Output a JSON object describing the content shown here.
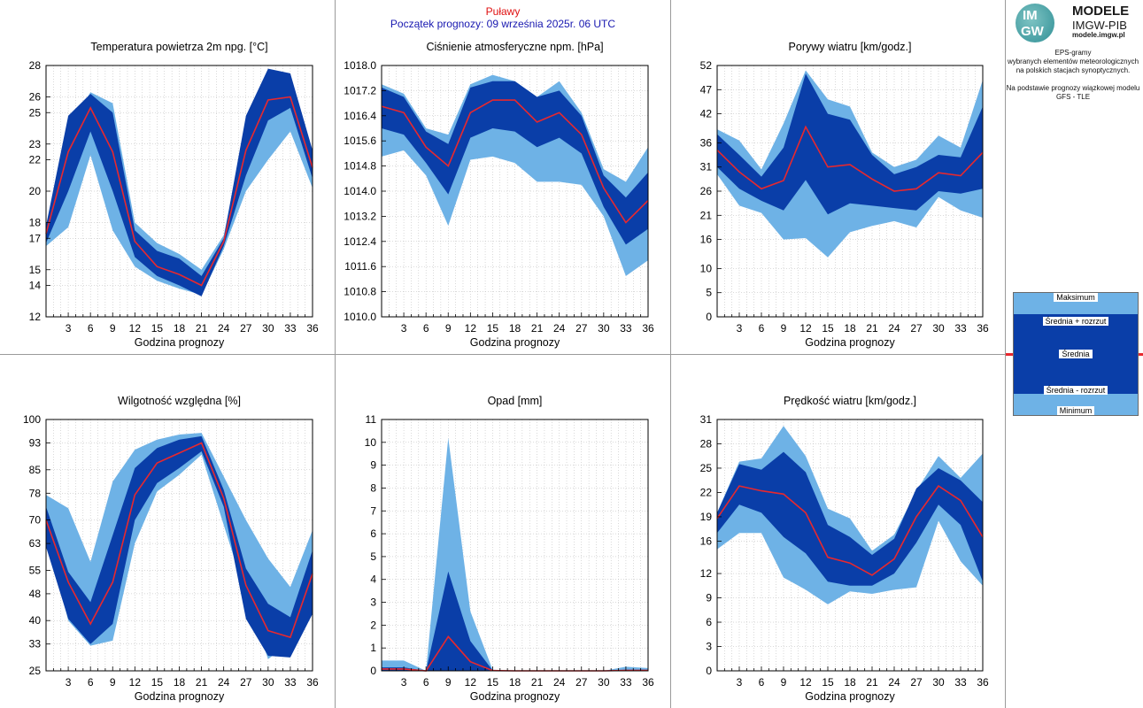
{
  "header": {
    "station": "Puławy",
    "forecast_start": "Początek prognozy: 09 września 2025r. 06 UTC"
  },
  "logo": {
    "letters_top": "IM",
    "letters_bottom": "GW",
    "title": "MODELE",
    "subtitle": "IMGW-PIB",
    "site": "modele.imgw.pl"
  },
  "description": {
    "line1": "EPS-gramy",
    "line2": "wybranych elementów meteorologicznych",
    "line3": "na polskich stacjach  synoptycznych.",
    "line4": "Na podstawie prognozy wiązkowej modelu",
    "line5": "GFS - TLE"
  },
  "legend": {
    "max": "Maksimum",
    "mean_plus": "Średnia + rozrzut",
    "mean": "Średnia",
    "mean_minus": "Średnia - rozrzut",
    "min": "Minimum"
  },
  "colors": {
    "outer_band": "#6eb2e6",
    "inner_band": "#0a3ea8",
    "mean_line": "#e8282e",
    "axis": "#000000",
    "grid": "#b4b4b4",
    "divider": "#9a9a9a"
  },
  "chart_data": [
    {
      "type": "area",
      "title": "Temperatura powietrza 2m npg. [°C]",
      "xlabel": "Godzina prognozy",
      "x": [
        0,
        3,
        6,
        9,
        12,
        15,
        18,
        21,
        24,
        27,
        30,
        33,
        36
      ],
      "xticks": [
        "3",
        "6",
        "9",
        "12",
        "15",
        "18",
        "21",
        "24",
        "27",
        "30",
        "33",
        "36"
      ],
      "ylim": [
        12,
        28
      ],
      "yticks": [
        "12",
        "14",
        "15",
        "17",
        "18",
        "20",
        "22",
        "23",
        "25",
        "26",
        "28"
      ],
      "series": {
        "max": [
          17.0,
          24.0,
          26.3,
          25.6,
          18.0,
          16.7,
          16.0,
          15.0,
          17.2,
          24.0,
          27.0,
          26.7,
          21.8
        ],
        "mean_plus": [
          17.8,
          24.8,
          26.2,
          25.0,
          17.5,
          16.2,
          15.7,
          14.6,
          17.0,
          24.8,
          27.8,
          27.5,
          22.6
        ],
        "mean": [
          17.3,
          22.5,
          25.3,
          22.5,
          16.8,
          15.2,
          14.7,
          14.0,
          16.8,
          22.6,
          25.8,
          26.0,
          21.5
        ],
        "mean_minus": [
          16.7,
          20.0,
          23.8,
          20.0,
          15.8,
          14.6,
          14.0,
          13.3,
          16.5,
          21.0,
          24.5,
          25.3,
          20.8
        ],
        "min": [
          16.5,
          17.7,
          22.3,
          17.5,
          15.2,
          14.3,
          13.8,
          13.4,
          16.3,
          20.0,
          22.0,
          23.8,
          20.2
        ]
      }
    },
    {
      "type": "area",
      "title": "Ciśnienie atmosferyczne npm. [hPa]",
      "xlabel": "Godzina prognozy",
      "x": [
        0,
        3,
        6,
        9,
        12,
        15,
        18,
        21,
        24,
        27,
        30,
        33,
        36
      ],
      "xticks": [
        "3",
        "6",
        "9",
        "12",
        "15",
        "18",
        "21",
        "24",
        "27",
        "30",
        "33",
        "36"
      ],
      "ylim": [
        1010.0,
        1018.0
      ],
      "yticks": [
        "1010.0",
        "1010.8",
        "1011.6",
        "1012.4",
        "1013.2",
        "1014.0",
        "1014.8",
        "1015.6",
        "1016.4",
        "1017.2",
        "1018.0"
      ],
      "series": {
        "max": [
          1017.4,
          1017.1,
          1016.0,
          1015.8,
          1017.4,
          1017.7,
          1017.5,
          1017.0,
          1017.5,
          1016.5,
          1014.7,
          1014.3,
          1015.4
        ],
        "mean_plus": [
          1017.3,
          1017.0,
          1015.9,
          1015.5,
          1017.3,
          1017.5,
          1017.5,
          1017.0,
          1017.2,
          1016.4,
          1014.5,
          1013.8,
          1014.6
        ],
        "mean": [
          1016.7,
          1016.5,
          1015.4,
          1014.8,
          1016.5,
          1016.9,
          1016.9,
          1016.2,
          1016.5,
          1015.8,
          1014.1,
          1013.0,
          1013.7
        ],
        "mean_minus": [
          1016.0,
          1015.8,
          1014.9,
          1013.9,
          1015.7,
          1016.0,
          1015.9,
          1015.4,
          1015.7,
          1015.2,
          1013.5,
          1012.3,
          1012.8
        ],
        "min": [
          1015.1,
          1015.3,
          1014.5,
          1012.9,
          1015.0,
          1015.1,
          1014.9,
          1014.3,
          1014.3,
          1014.2,
          1013.2,
          1011.3,
          1011.8
        ]
      }
    },
    {
      "type": "area",
      "title": "Porywy wiatru [km/godz.]",
      "xlabel": "Godzina prognozy",
      "x": [
        0,
        3,
        6,
        9,
        12,
        15,
        18,
        21,
        24,
        27,
        30,
        33,
        36
      ],
      "xticks": [
        "3",
        "6",
        "9",
        "12",
        "15",
        "18",
        "21",
        "24",
        "27",
        "30",
        "33",
        "36"
      ],
      "ylim": [
        0,
        52
      ],
      "yticks": [
        "0",
        "5",
        "10",
        "16",
        "21",
        "26",
        "31",
        "36",
        "42",
        "47",
        "52"
      ],
      "series": {
        "max": [
          38.8,
          36.5,
          30.5,
          40.0,
          51.0,
          45.0,
          43.5,
          34.0,
          31.0,
          32.5,
          37.5,
          35.0,
          49.0
        ],
        "mean_plus": [
          37.8,
          33.5,
          29.0,
          35.0,
          50.3,
          42.0,
          40.8,
          33.5,
          29.5,
          31.0,
          33.5,
          33.0,
          43.5
        ],
        "mean": [
          34.5,
          30.0,
          26.5,
          28.2,
          39.3,
          31.0,
          31.5,
          28.5,
          26.0,
          26.5,
          29.8,
          29.2,
          34.0
        ],
        "mean_minus": [
          31.0,
          26.5,
          24.0,
          22.0,
          28.3,
          21.2,
          23.5,
          23.0,
          22.5,
          22.0,
          26.0,
          25.5,
          26.5
        ],
        "min": [
          29.5,
          23.0,
          21.5,
          16.0,
          16.3,
          12.3,
          17.5,
          18.8,
          19.8,
          18.5,
          24.8,
          22.0,
          20.5
        ]
      }
    },
    {
      "type": "area",
      "title": "Wilgotność względna [%]",
      "xlabel": "Godzina prognozy",
      "x": [
        0,
        3,
        6,
        9,
        12,
        15,
        18,
        21,
        24,
        27,
        30,
        33,
        36
      ],
      "xticks": [
        "3",
        "6",
        "9",
        "12",
        "15",
        "18",
        "21",
        "24",
        "27",
        "30",
        "33",
        "36"
      ],
      "ylim": [
        25,
        100
      ],
      "yticks": [
        "25",
        "33",
        "40",
        "48",
        "55",
        "63",
        "70",
        "78",
        "85",
        "93",
        "100"
      ],
      "series": {
        "max": [
          77.5,
          73.5,
          57.5,
          81.5,
          91.0,
          94.0,
          95.5,
          96.0,
          83.0,
          70.0,
          58.5,
          50.0,
          67.0
        ],
        "mean_plus": [
          74.0,
          54.5,
          45.5,
          65.5,
          85.5,
          91.5,
          94.0,
          95.0,
          79.0,
          55.5,
          45.0,
          41.0,
          61.0
        ],
        "mean": [
          70.0,
          51.5,
          39.0,
          51.5,
          77.5,
          87.0,
          90.0,
          93.0,
          76.5,
          50.5,
          37.0,
          35.0,
          54.0
        ],
        "mean_minus": [
          62.0,
          40.5,
          33.0,
          39.0,
          70.0,
          81.0,
          85.5,
          90.5,
          74.0,
          40.5,
          29.5,
          29.0,
          42.0
        ],
        "min": [
          66.0,
          40.0,
          32.5,
          34.0,
          63.0,
          78.5,
          83.5,
          89.5,
          68.5,
          47.5,
          28.5,
          33.5,
          46.0
        ]
      }
    },
    {
      "type": "area",
      "title": "Opad [mm]",
      "xlabel": "Godzina prognozy",
      "x": [
        0,
        3,
        6,
        9,
        12,
        15,
        18,
        21,
        24,
        27,
        30,
        33,
        36
      ],
      "xticks": [
        "3",
        "6",
        "9",
        "12",
        "15",
        "18",
        "21",
        "24",
        "27",
        "30",
        "33",
        "36"
      ],
      "ylim": [
        0,
        11
      ],
      "yticks": [
        "0",
        "1",
        "2",
        "3",
        "4",
        "5",
        "6",
        "7",
        "8",
        "9",
        "10",
        "11"
      ],
      "series": {
        "max": [
          0.45,
          0.45,
          0.0,
          10.2,
          2.6,
          0.05,
          0.0,
          0.0,
          0.0,
          0.0,
          0.0,
          0.18,
          0.12
        ],
        "mean_plus": [
          0.15,
          0.15,
          0.0,
          4.35,
          1.3,
          0.02,
          0.0,
          0.0,
          0.0,
          0.0,
          0.0,
          0.05,
          0.05
        ],
        "mean": [
          0.08,
          0.08,
          0.0,
          1.5,
          0.4,
          0.01,
          0.0,
          0.0,
          0.0,
          0.0,
          0.0,
          0.02,
          0.02
        ],
        "mean_minus": [
          0.0,
          0.0,
          0.0,
          0.0,
          0.0,
          0.0,
          0.0,
          0.0,
          0.0,
          0.0,
          0.0,
          0.0,
          0.0
        ],
        "min": [
          0.0,
          0.0,
          0.0,
          0.0,
          0.0,
          0.0,
          0.0,
          0.0,
          0.0,
          0.0,
          0.0,
          0.0,
          0.0
        ]
      }
    },
    {
      "type": "area",
      "title": "Prędkość wiatru [km/godz.]",
      "xlabel": "Godzina prognozy",
      "x": [
        0,
        3,
        6,
        9,
        12,
        15,
        18,
        21,
        24,
        27,
        30,
        33,
        36
      ],
      "xticks": [
        "3",
        "6",
        "9",
        "12",
        "15",
        "18",
        "21",
        "24",
        "27",
        "30",
        "33",
        "36"
      ],
      "ylim": [
        0,
        31
      ],
      "yticks": [
        "0",
        "3",
        "6",
        "9",
        "12",
        "16",
        "19",
        "22",
        "25",
        "28",
        "31"
      ],
      "series": {
        "max": [
          19.5,
          25.8,
          26.2,
          30.2,
          26.5,
          20.0,
          18.8,
          14.8,
          16.8,
          22.2,
          26.5,
          23.8,
          26.8
        ],
        "mean_plus": [
          19.5,
          25.5,
          24.8,
          27.0,
          24.5,
          18.0,
          16.5,
          14.3,
          16.3,
          22.5,
          25.0,
          23.5,
          20.8
        ],
        "mean": [
          18.8,
          22.8,
          22.2,
          21.8,
          19.5,
          14.0,
          13.3,
          11.8,
          13.8,
          19.0,
          22.8,
          21.0,
          16.5
        ],
        "mean_minus": [
          17.0,
          20.5,
          19.5,
          16.5,
          14.5,
          11.0,
          10.5,
          10.5,
          12.0,
          15.8,
          20.5,
          18.0,
          11.0
        ],
        "min": [
          15.0,
          17.0,
          17.0,
          11.5,
          10.0,
          8.2,
          9.8,
          9.5,
          10.0,
          10.3,
          18.5,
          13.5,
          10.5
        ]
      }
    }
  ]
}
